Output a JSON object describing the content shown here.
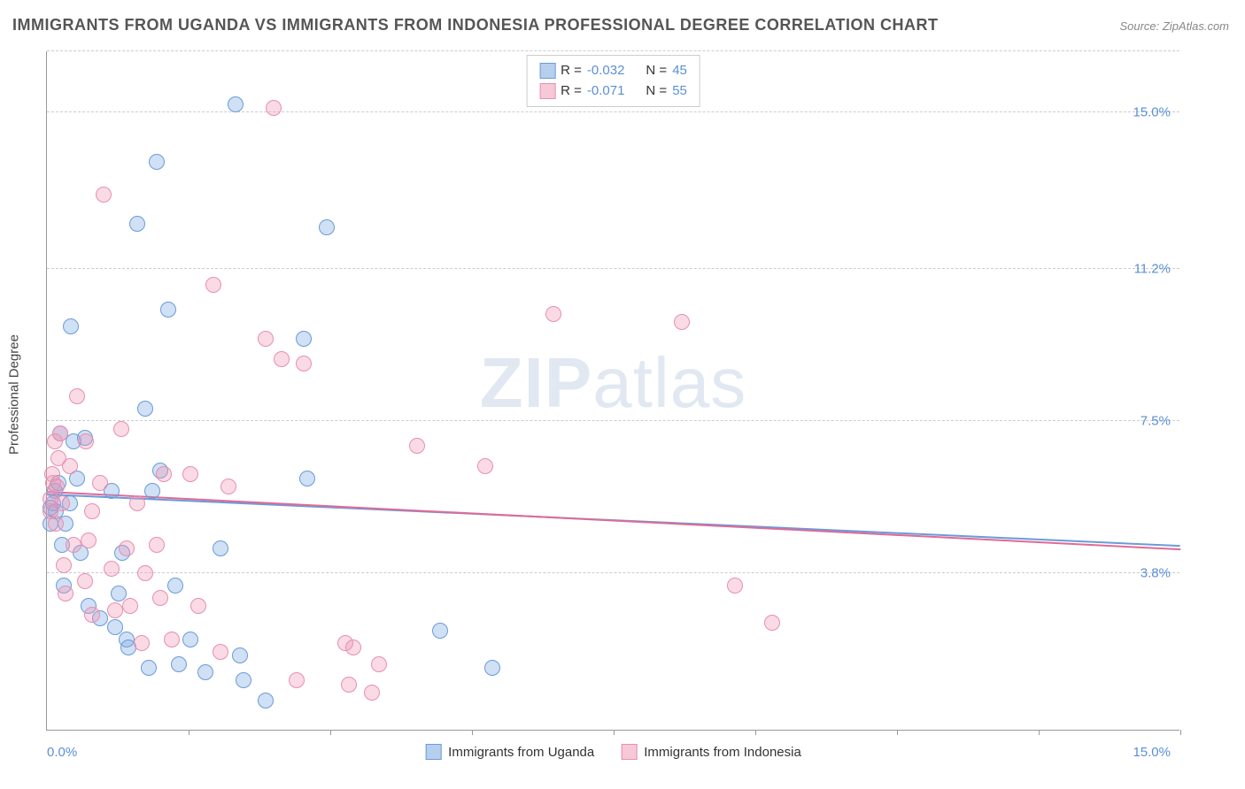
{
  "title": "IMMIGRANTS FROM UGANDA VS IMMIGRANTS FROM INDONESIA PROFESSIONAL DEGREE CORRELATION CHART",
  "source": "Source: ZipAtlas.com",
  "watermark_strong": "ZIP",
  "watermark_rest": "atlas",
  "ylabel": "Professional Degree",
  "chart": {
    "type": "scatter",
    "xlim": [
      0.0,
      15.0
    ],
    "ylim": [
      0.0,
      16.5
    ],
    "background_color": "#ffffff",
    "grid_color": "#cccccc",
    "axis_color": "#999999",
    "tick_label_color": "#5b8fd6",
    "tick_fontsize": 15,
    "yticks": [
      {
        "value": 3.8,
        "label": "3.8%"
      },
      {
        "value": 7.5,
        "label": "7.5%"
      },
      {
        "value": 11.2,
        "label": "11.2%"
      },
      {
        "value": 15.0,
        "label": "15.0%"
      }
    ],
    "xtick_positions": [
      1.88,
      3.75,
      5.63,
      7.5,
      9.38,
      11.25,
      13.13,
      15.0
    ],
    "xaxis_label_left": "0.0%",
    "xaxis_label_right": "15.0%",
    "marker_radius": 9,
    "marker_stroke_width": 1.5,
    "regression_line_width": 2
  },
  "series": [
    {
      "name": "Immigrants from Uganda",
      "fill": "rgba(120,165,225,0.35)",
      "stroke": "#6a9bd8",
      "swatch_fill": "#b7cfee",
      "swatch_border": "#6a9bd8",
      "R": "-0.032",
      "N": "45",
      "regression": {
        "x1": 0.0,
        "y1": 5.7,
        "x2": 15.0,
        "y2": 4.45,
        "color": "#6a9bd8"
      },
      "points": [
        {
          "x": 0.05,
          "y": 5.0
        },
        {
          "x": 0.08,
          "y": 5.5
        },
        {
          "x": 0.1,
          "y": 5.8
        },
        {
          "x": 0.12,
          "y": 5.3
        },
        {
          "x": 0.15,
          "y": 6.0
        },
        {
          "x": 0.18,
          "y": 7.2
        },
        {
          "x": 0.2,
          "y": 4.5
        },
        {
          "x": 0.22,
          "y": 3.5
        },
        {
          "x": 0.3,
          "y": 5.5
        },
        {
          "x": 0.32,
          "y": 9.8
        },
        {
          "x": 0.4,
          "y": 6.1
        },
        {
          "x": 0.35,
          "y": 7.0
        },
        {
          "x": 0.45,
          "y": 4.3
        },
        {
          "x": 0.5,
          "y": 7.1
        },
        {
          "x": 0.55,
          "y": 3.0
        },
        {
          "x": 0.7,
          "y": 2.7
        },
        {
          "x": 0.9,
          "y": 2.5
        },
        {
          "x": 0.85,
          "y": 5.8
        },
        {
          "x": 0.95,
          "y": 3.3
        },
        {
          "x": 1.0,
          "y": 4.3
        },
        {
          "x": 1.05,
          "y": 2.2
        },
        {
          "x": 1.08,
          "y": 2.0
        },
        {
          "x": 1.2,
          "y": 12.3
        },
        {
          "x": 1.3,
          "y": 7.8
        },
        {
          "x": 1.35,
          "y": 1.5
        },
        {
          "x": 1.4,
          "y": 5.8
        },
        {
          "x": 1.5,
          "y": 6.3
        },
        {
          "x": 1.45,
          "y": 13.8
        },
        {
          "x": 1.6,
          "y": 10.2
        },
        {
          "x": 1.7,
          "y": 3.5
        },
        {
          "x": 1.75,
          "y": 1.6
        },
        {
          "x": 1.9,
          "y": 2.2
        },
        {
          "x": 2.1,
          "y": 1.4
        },
        {
          "x": 2.3,
          "y": 4.4
        },
        {
          "x": 2.5,
          "y": 15.2
        },
        {
          "x": 2.55,
          "y": 1.8
        },
        {
          "x": 2.6,
          "y": 1.2
        },
        {
          "x": 2.9,
          "y": 0.7
        },
        {
          "x": 3.4,
          "y": 9.5
        },
        {
          "x": 3.45,
          "y": 6.1
        },
        {
          "x": 3.7,
          "y": 12.2
        },
        {
          "x": 5.2,
          "y": 2.4
        },
        {
          "x": 5.9,
          "y": 1.5
        },
        {
          "x": 0.25,
          "y": 5.0
        },
        {
          "x": 0.05,
          "y": 5.4
        }
      ]
    },
    {
      "name": "Immigrants from Indonesia",
      "fill": "rgba(240,150,180,0.35)",
      "stroke": "#e78fb0",
      "swatch_fill": "#f6c8d8",
      "swatch_border": "#e78fb0",
      "R": "-0.071",
      "N": "55",
      "regression": {
        "x1": 0.0,
        "y1": 5.75,
        "x2": 15.0,
        "y2": 4.35,
        "color": "#e06a96"
      },
      "points": [
        {
          "x": 0.05,
          "y": 5.3
        },
        {
          "x": 0.08,
          "y": 6.0
        },
        {
          "x": 0.1,
          "y": 7.0
        },
        {
          "x": 0.12,
          "y": 5.0
        },
        {
          "x": 0.15,
          "y": 6.6
        },
        {
          "x": 0.18,
          "y": 7.2
        },
        {
          "x": 0.2,
          "y": 5.5
        },
        {
          "x": 0.22,
          "y": 4.0
        },
        {
          "x": 0.25,
          "y": 3.3
        },
        {
          "x": 0.3,
          "y": 6.4
        },
        {
          "x": 0.35,
          "y": 4.5
        },
        {
          "x": 0.4,
          "y": 8.1
        },
        {
          "x": 0.5,
          "y": 3.6
        },
        {
          "x": 0.52,
          "y": 7.0
        },
        {
          "x": 0.55,
          "y": 4.6
        },
        {
          "x": 0.6,
          "y": 2.8
        },
        {
          "x": 0.7,
          "y": 6.0
        },
        {
          "x": 0.75,
          "y": 13.0
        },
        {
          "x": 0.85,
          "y": 3.9
        },
        {
          "x": 0.9,
          "y": 2.9
        },
        {
          "x": 0.98,
          "y": 7.3
        },
        {
          "x": 1.05,
          "y": 4.4
        },
        {
          "x": 1.1,
          "y": 3.0
        },
        {
          "x": 1.2,
          "y": 5.5
        },
        {
          "x": 1.25,
          "y": 2.1
        },
        {
          "x": 1.3,
          "y": 3.8
        },
        {
          "x": 1.45,
          "y": 4.5
        },
        {
          "x": 1.5,
          "y": 3.2
        },
        {
          "x": 1.55,
          "y": 6.2
        },
        {
          "x": 1.65,
          "y": 2.2
        },
        {
          "x": 1.9,
          "y": 6.2
        },
        {
          "x": 2.0,
          "y": 3.0
        },
        {
          "x": 2.2,
          "y": 10.8
        },
        {
          "x": 2.3,
          "y": 1.9
        },
        {
          "x": 2.4,
          "y": 5.9
        },
        {
          "x": 2.9,
          "y": 9.5
        },
        {
          "x": 3.0,
          "y": 15.1
        },
        {
          "x": 3.1,
          "y": 9.0
        },
        {
          "x": 3.3,
          "y": 1.2
        },
        {
          "x": 3.4,
          "y": 8.9
        },
        {
          "x": 3.95,
          "y": 2.1
        },
        {
          "x": 4.0,
          "y": 1.1
        },
        {
          "x": 4.05,
          "y": 2.0
        },
        {
          "x": 4.3,
          "y": 0.9
        },
        {
          "x": 4.4,
          "y": 1.6
        },
        {
          "x": 4.9,
          "y": 6.9
        },
        {
          "x": 5.8,
          "y": 6.4
        },
        {
          "x": 6.7,
          "y": 10.1
        },
        {
          "x": 8.4,
          "y": 9.9
        },
        {
          "x": 9.1,
          "y": 3.5
        },
        {
          "x": 9.6,
          "y": 2.6
        },
        {
          "x": 0.05,
          "y": 5.6
        },
        {
          "x": 0.07,
          "y": 6.2
        },
        {
          "x": 0.13,
          "y": 5.9
        },
        {
          "x": 0.6,
          "y": 5.3
        }
      ]
    }
  ],
  "legend_labels": {
    "R_prefix": "R = ",
    "N_prefix": "N = "
  }
}
